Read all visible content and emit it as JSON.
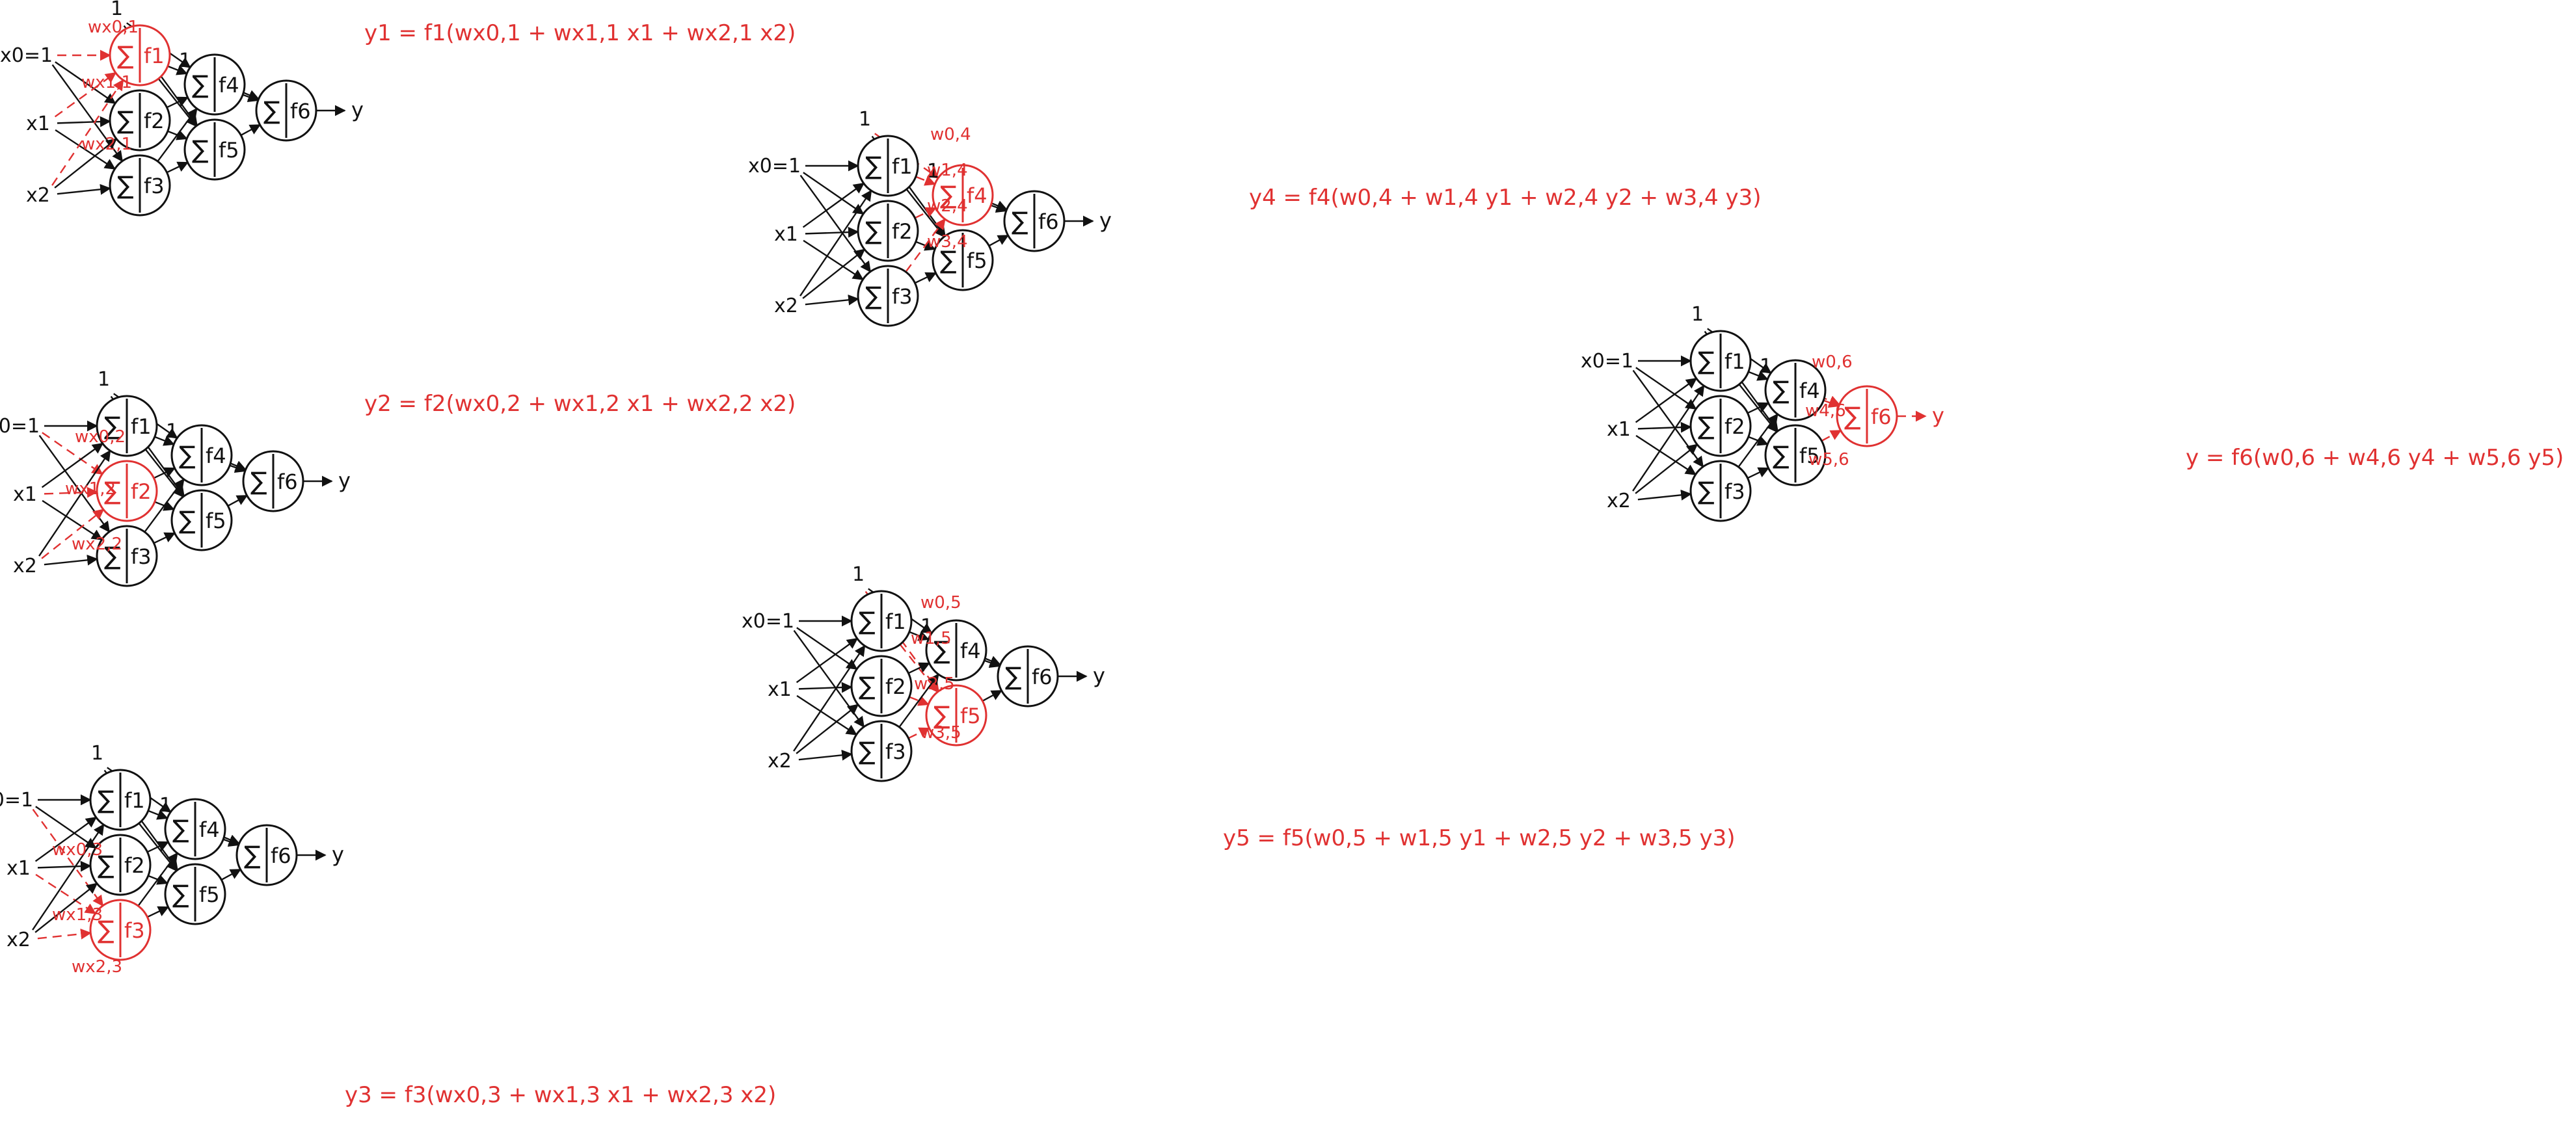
{
  "colors": {
    "ink": "#111111",
    "highlight": "#e03131"
  },
  "sum_symbol": "∑",
  "input_labels": {
    "x0": "x0=1",
    "x1": "x1",
    "x2": "x2"
  },
  "bias_label": "1",
  "output_label": "y",
  "node_names": {
    "n1": "f1",
    "n2": "f2",
    "n3": "f3",
    "n4": "f4",
    "n5": "f5",
    "n6": "f6"
  },
  "panels": [
    {
      "id": "p1",
      "equation": "y1 = f1(wx0,1 + wx1,1 x1 + wx2,1 x2)",
      "highlight_node": "n1",
      "weight_labels": [
        "wx0,1",
        "wx1,1",
        "wx2,1"
      ]
    },
    {
      "id": "p2",
      "equation": "y2 = f2(wx0,2 + wx1,2 x1 + wx2,2 x2)",
      "highlight_node": "n2",
      "weight_labels": [
        "wx0,2",
        "wx1,2",
        "wx2,2"
      ]
    },
    {
      "id": "p3",
      "equation": "y3 = f3(wx0,3 + wx1,3 x1 + wx2,3 x2)",
      "highlight_node": "n3",
      "weight_labels": [
        "wx0,3",
        "wx1,3",
        "wx2,3"
      ]
    },
    {
      "id": "p4",
      "equation": "y4 = f4(w0,4 + w1,4 y1 + w2,4 y2 + w3,4 y3)",
      "highlight_node": "n4",
      "weight_labels": [
        "w0,4",
        "w1,4",
        "w2,4",
        "w3,4"
      ]
    },
    {
      "id": "p5",
      "equation": "y5 = f5(w0,5 + w1,5 y1 + w2,5 y2 + w3,5 y3)",
      "highlight_node": "n5",
      "weight_labels": [
        "w0,5",
        "w1,5",
        "w2,5",
        "w3,5"
      ]
    },
    {
      "id": "p6",
      "equation": "y = f6(w0,6 + w4,6 y4 + w5,6 y5)",
      "highlight_node": "n6",
      "weight_labels": [
        "w0,6",
        "w4,6",
        "w5,6"
      ]
    }
  ]
}
